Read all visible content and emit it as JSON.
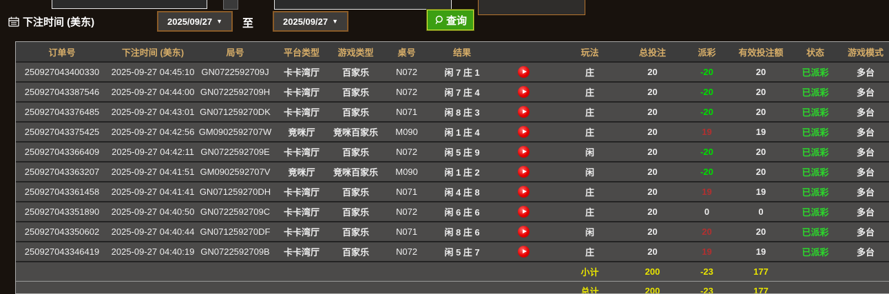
{
  "filter_bar": {
    "label": "下注时间 (美东)",
    "date_from": "2025/09/27",
    "date_to": "2025/09/27",
    "to_label": "至",
    "query_label": "查询"
  },
  "table": {
    "headers": [
      "订单号",
      "下注时间 (美东)",
      "局号",
      "平台类型",
      "游戏类型",
      "桌号",
      "结果",
      "",
      "玩法",
      "总投注",
      "派彩",
      "有效投注额",
      "状态",
      "游戏模式"
    ],
    "rows": [
      {
        "order_id": "250927043400330",
        "bet_time": "2025-09-27 04:45:10",
        "round_id": "GN0722592709J",
        "platform": "卡卡湾厅",
        "game_type": "百家乐",
        "table_no": "N072",
        "result": "闲 7 庄 1",
        "play": "庄",
        "total_bet": "20",
        "payout": "-20",
        "valid_bet": "20",
        "status": "已派彩",
        "mode": "多台"
      },
      {
        "order_id": "250927043387546",
        "bet_time": "2025-09-27 04:44:00",
        "round_id": "GN0722592709H",
        "platform": "卡卡湾厅",
        "game_type": "百家乐",
        "table_no": "N072",
        "result": "闲 7 庄 4",
        "play": "庄",
        "total_bet": "20",
        "payout": "-20",
        "valid_bet": "20",
        "status": "已派彩",
        "mode": "多台"
      },
      {
        "order_id": "250927043376485",
        "bet_time": "2025-09-27 04:43:01",
        "round_id": "GN071259270DK",
        "platform": "卡卡湾厅",
        "game_type": "百家乐",
        "table_no": "N071",
        "result": "闲 8 庄 3",
        "play": "庄",
        "total_bet": "20",
        "payout": "-20",
        "valid_bet": "20",
        "status": "已派彩",
        "mode": "多台"
      },
      {
        "order_id": "250927043375425",
        "bet_time": "2025-09-27 04:42:56",
        "round_id": "GM0902592707W",
        "platform": "竞咪厅",
        "game_type": "竞咪百家乐",
        "table_no": "M090",
        "result": "闲 1 庄 4",
        "play": "庄",
        "total_bet": "20",
        "payout": "19",
        "valid_bet": "19",
        "status": "已派彩",
        "mode": "多台"
      },
      {
        "order_id": "250927043366409",
        "bet_time": "2025-09-27 04:42:11",
        "round_id": "GN0722592709E",
        "platform": "卡卡湾厅",
        "game_type": "百家乐",
        "table_no": "N072",
        "result": "闲 5 庄 9",
        "play": "闲",
        "total_bet": "20",
        "payout": "-20",
        "valid_bet": "20",
        "status": "已派彩",
        "mode": "多台"
      },
      {
        "order_id": "250927043363207",
        "bet_time": "2025-09-27 04:41:51",
        "round_id": "GM0902592707V",
        "platform": "竞咪厅",
        "game_type": "竞咪百家乐",
        "table_no": "M090",
        "result": "闲 1 庄 2",
        "play": "闲",
        "total_bet": "20",
        "payout": "-20",
        "valid_bet": "20",
        "status": "已派彩",
        "mode": "多台"
      },
      {
        "order_id": "250927043361458",
        "bet_time": "2025-09-27 04:41:41",
        "round_id": "GN071259270DH",
        "platform": "卡卡湾厅",
        "game_type": "百家乐",
        "table_no": "N071",
        "result": "闲 4 庄 8",
        "play": "庄",
        "total_bet": "20",
        "payout": "19",
        "valid_bet": "19",
        "status": "已派彩",
        "mode": "多台"
      },
      {
        "order_id": "250927043351890",
        "bet_time": "2025-09-27 04:40:50",
        "round_id": "GN0722592709C",
        "platform": "卡卡湾厅",
        "game_type": "百家乐",
        "table_no": "N072",
        "result": "闲 6 庄 6",
        "play": "庄",
        "total_bet": "20",
        "payout": "0",
        "valid_bet": "0",
        "status": "已派彩",
        "mode": "多台"
      },
      {
        "order_id": "250927043350602",
        "bet_time": "2025-09-27 04:40:44",
        "round_id": "GN071259270DF",
        "platform": "卡卡湾厅",
        "game_type": "百家乐",
        "table_no": "N071",
        "result": "闲 8 庄 6",
        "play": "闲",
        "total_bet": "20",
        "payout": "20",
        "valid_bet": "20",
        "status": "已派彩",
        "mode": "多台"
      },
      {
        "order_id": "250927043346419",
        "bet_time": "2025-09-27 04:40:19",
        "round_id": "GN0722592709B",
        "platform": "卡卡湾厅",
        "game_type": "百家乐",
        "table_no": "N072",
        "result": "闲 5 庄 7",
        "play": "庄",
        "total_bet": "20",
        "payout": "19",
        "valid_bet": "19",
        "status": "已派彩",
        "mode": "多台"
      }
    ],
    "subtotal": {
      "label": "小计",
      "total_bet": "200",
      "payout": "-23",
      "valid_bet": "177"
    },
    "total": {
      "label": "总计",
      "total_bet": "200",
      "payout": "-23",
      "valid_bet": "177"
    }
  },
  "icons": {
    "calendar": "calendar-icon",
    "magnifier": "search-icon",
    "replay": "red-play-button"
  },
  "colors": {
    "header_text": "#d6ad68",
    "row_bg": "#4b4a49",
    "header_bg": "#3c3c3c",
    "payout_negative": "#00dd00",
    "payout_positive": "#b23030",
    "status_paid": "#2bd82b",
    "totals_yellow": "#e8e400",
    "query_button_green": "#3c9f12",
    "date_border_brown": "#8a5b27",
    "play_icon_red": "#e60000"
  }
}
